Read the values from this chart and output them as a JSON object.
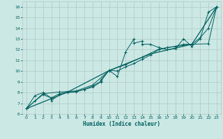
{
  "xlabel": "Humidex (Indice chaleur)",
  "bg_color": "#cce8e4",
  "grid_color": "#b0c8c4",
  "line_color": "#006060",
  "xlim": [
    -0.5,
    23.5
  ],
  "ylim": [
    6,
    16.5
  ],
  "xticks": [
    0,
    1,
    2,
    3,
    4,
    5,
    6,
    7,
    8,
    9,
    10,
    11,
    12,
    13,
    14,
    15,
    16,
    17,
    18,
    19,
    20,
    21,
    22,
    23
  ],
  "yticks": [
    6,
    7,
    8,
    9,
    10,
    11,
    12,
    13,
    14,
    15,
    16
  ],
  "series1_x": [
    0,
    1,
    2,
    3,
    3,
    4,
    5,
    6,
    7,
    8,
    9,
    9,
    10,
    11,
    12,
    13,
    13,
    14,
    14,
    15,
    16,
    17,
    18,
    19,
    20,
    21,
    22,
    23
  ],
  "series1_y": [
    6.5,
    7.7,
    8.0,
    7.5,
    7.25,
    7.8,
    8.0,
    8.05,
    8.3,
    8.5,
    9.0,
    9.2,
    10.05,
    9.5,
    11.8,
    13.0,
    12.6,
    12.8,
    12.5,
    12.5,
    12.2,
    12.0,
    12.1,
    13.0,
    12.3,
    13.0,
    15.5,
    16.0
  ],
  "series2_x": [
    0,
    1,
    2,
    3,
    4,
    5,
    6,
    7,
    8,
    9,
    10,
    11,
    12,
    13,
    14,
    15,
    16,
    17,
    18,
    19,
    20,
    21,
    22,
    23
  ],
  "series2_y": [
    6.5,
    7.2,
    7.8,
    7.5,
    7.9,
    8.05,
    8.1,
    8.3,
    8.6,
    9.05,
    10.1,
    10.0,
    10.4,
    10.7,
    11.1,
    11.5,
    12.0,
    12.2,
    12.3,
    12.5,
    12.5,
    13.1,
    14.0,
    16.0
  ],
  "series3_x": [
    0,
    2,
    4,
    6,
    8,
    10,
    12,
    14,
    16,
    18,
    20,
    22,
    23
  ],
  "series3_y": [
    6.5,
    7.9,
    8.05,
    8.15,
    8.7,
    10.05,
    10.6,
    11.3,
    12.05,
    12.3,
    12.5,
    12.55,
    16.0
  ],
  "series4_x": [
    0,
    5,
    10,
    15,
    20,
    23
  ],
  "series4_y": [
    6.5,
    8.05,
    10.05,
    11.6,
    12.5,
    16.0
  ]
}
